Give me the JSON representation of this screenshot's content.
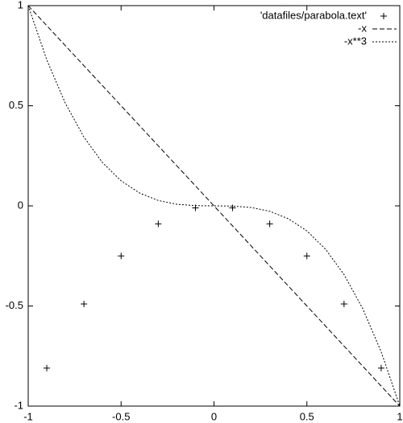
{
  "chart_data": {
    "type": "line",
    "xlim": [
      -1,
      1
    ],
    "ylim": [
      -1,
      1
    ],
    "xticks": [
      -1,
      -0.5,
      0,
      0.5,
      1
    ],
    "yticks": [
      -1,
      -0.5,
      0,
      0.5,
      1
    ],
    "legend": "top-right",
    "series": [
      {
        "name": "'datafiles/parabola.text'",
        "color": "#000000",
        "style": "points",
        "x": [
          -0.9,
          -0.7,
          -0.5,
          -0.3,
          -0.1,
          0.1,
          0.3,
          0.5,
          0.7,
          0.9
        ],
        "values": [
          -0.81,
          -0.49,
          -0.25,
          -0.09,
          -0.01,
          -0.01,
          -0.09,
          -0.25,
          -0.49,
          -0.81
        ]
      },
      {
        "name": "-x",
        "color": "#000000",
        "style": "dashed",
        "x": [
          -1,
          -0.9,
          -0.8,
          -0.7,
          -0.6,
          -0.5,
          -0.4,
          -0.3,
          -0.2,
          -0.1,
          0,
          0.1,
          0.2,
          0.3,
          0.4,
          0.5,
          0.6,
          0.7,
          0.8,
          0.9,
          1
        ],
        "values": [
          1,
          0.9,
          0.8,
          0.7,
          0.6,
          0.5,
          0.4,
          0.3,
          0.2,
          0.1,
          0,
          -0.1,
          -0.2,
          -0.3,
          -0.4,
          -0.5,
          -0.6,
          -0.7,
          -0.8,
          -0.9,
          -1
        ]
      },
      {
        "name": "-x**3",
        "color": "#000000",
        "style": "dotted",
        "x": [
          -1,
          -0.9,
          -0.8,
          -0.7,
          -0.6,
          -0.5,
          -0.4,
          -0.3,
          -0.2,
          -0.1,
          0,
          0.1,
          0.2,
          0.3,
          0.4,
          0.5,
          0.6,
          0.7,
          0.8,
          0.9,
          1
        ],
        "values": [
          1,
          0.729,
          0.512,
          0.343,
          0.216,
          0.125,
          0.064,
          0.027,
          0.008,
          0.001,
          0,
          -0.001,
          -0.008,
          -0.027,
          -0.064,
          -0.125,
          -0.216,
          -0.343,
          -0.512,
          -0.729,
          -1
        ]
      }
    ]
  }
}
